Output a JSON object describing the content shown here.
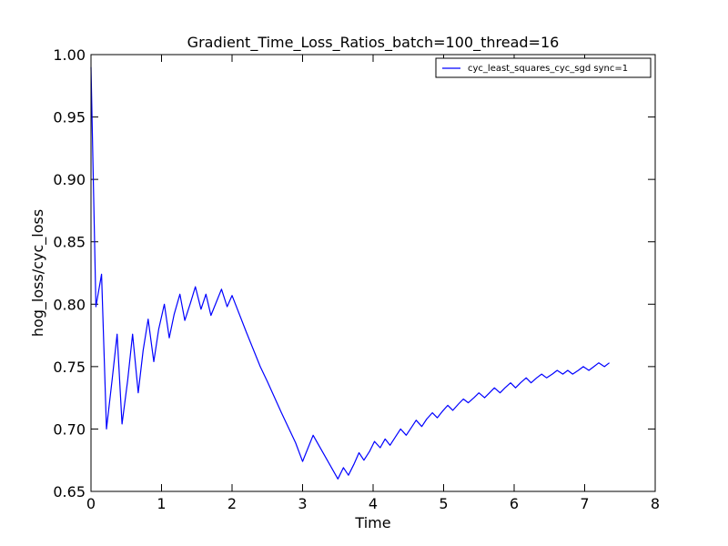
{
  "chart_data": {
    "type": "line",
    "title": "Gradient_Time_Loss_Ratios_batch=100_thread=16",
    "xlabel": "Time",
    "ylabel": "hog_loss/cyc_loss",
    "xlim": [
      0,
      8
    ],
    "ylim": [
      0.65,
      1.0
    ],
    "xticks": [
      0,
      1,
      2,
      3,
      4,
      5,
      6,
      7,
      8
    ],
    "xtick_labels": [
      "0",
      "1",
      "2",
      "3",
      "4",
      "5",
      "6",
      "7",
      "8"
    ],
    "yticks": [
      0.65,
      0.7,
      0.75,
      0.8,
      0.85,
      0.9,
      0.95,
      1.0
    ],
    "ytick_labels": [
      "0.65",
      "0.70",
      "0.75",
      "0.80",
      "0.85",
      "0.90",
      "0.95",
      "1.00"
    ],
    "grid": false,
    "legend_position": "top-right",
    "colors": {
      "line": "#0000ff",
      "frame": "#000000"
    },
    "series": [
      {
        "name": "cyc_least_squares_cyc_sgd sync=1",
        "color": "#0000ff",
        "x": [
          0.0,
          0.07,
          0.15,
          0.22,
          0.3,
          0.37,
          0.44,
          0.52,
          0.59,
          0.67,
          0.74,
          0.81,
          0.89,
          0.96,
          1.04,
          1.11,
          1.18,
          1.26,
          1.33,
          1.41,
          1.48,
          1.56,
          1.63,
          1.7,
          1.78,
          1.85,
          1.93,
          2.0,
          2.2,
          2.4,
          2.5,
          2.7,
          2.9,
          3.0,
          3.15,
          3.3,
          3.5,
          3.58,
          3.65,
          3.73,
          3.8,
          3.87,
          3.95,
          4.02,
          4.1,
          4.17,
          4.24,
          4.32,
          4.39,
          4.47,
          4.54,
          4.61,
          4.69,
          4.76,
          4.84,
          4.91,
          4.98,
          5.06,
          5.13,
          5.21,
          5.28,
          5.35,
          5.43,
          5.5,
          5.58,
          5.65,
          5.72,
          5.8,
          5.87,
          5.95,
          6.02,
          6.09,
          6.17,
          6.24,
          6.32,
          6.39,
          6.46,
          6.54,
          6.61,
          6.69,
          6.76,
          6.83,
          6.91,
          6.98,
          7.06,
          7.13,
          7.2,
          7.28,
          7.35
        ],
        "values": [
          0.99,
          0.798,
          0.824,
          0.7,
          0.74,
          0.776,
          0.704,
          0.739,
          0.776,
          0.729,
          0.763,
          0.788,
          0.754,
          0.78,
          0.8,
          0.773,
          0.792,
          0.808,
          0.787,
          0.801,
          0.814,
          0.796,
          0.808,
          0.791,
          0.802,
          0.812,
          0.798,
          0.807,
          0.778,
          0.75,
          0.738,
          0.713,
          0.689,
          0.674,
          0.695,
          0.68,
          0.66,
          0.669,
          0.663,
          0.672,
          0.681,
          0.675,
          0.682,
          0.69,
          0.685,
          0.692,
          0.687,
          0.694,
          0.7,
          0.695,
          0.701,
          0.707,
          0.702,
          0.708,
          0.713,
          0.709,
          0.714,
          0.719,
          0.715,
          0.72,
          0.724,
          0.721,
          0.725,
          0.729,
          0.725,
          0.729,
          0.733,
          0.729,
          0.733,
          0.737,
          0.733,
          0.737,
          0.741,
          0.737,
          0.741,
          0.744,
          0.741,
          0.744,
          0.747,
          0.744,
          0.747,
          0.744,
          0.747,
          0.75,
          0.747,
          0.75,
          0.753,
          0.75,
          0.753
        ]
      }
    ]
  }
}
